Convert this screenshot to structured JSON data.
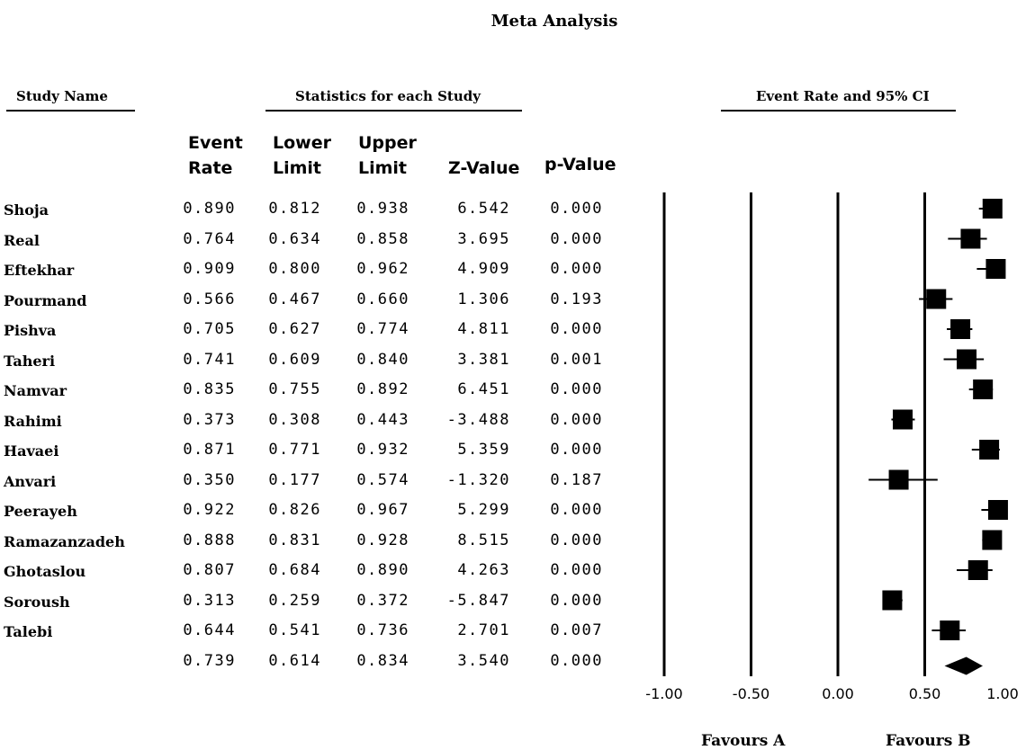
{
  "title": "Meta Analysis",
  "headers": {
    "study_name": "Study Name",
    "stats": "Statistics for each Study",
    "plot": "Event Rate and 95% CI"
  },
  "columns": {
    "event_rate": [
      "Event",
      "Rate"
    ],
    "lower_limit": [
      "Lower",
      "Limit"
    ],
    "upper_limit": [
      "Upper",
      "Limit"
    ],
    "z_value": "Z-Value",
    "p_value": "p-Value"
  },
  "rows": [
    {
      "study": "Shoja",
      "event_rate": "0.890",
      "lower": "0.812",
      "upper": "0.938",
      "z": "6.542",
      "p": "0.000"
    },
    {
      "study": "Real",
      "event_rate": "0.764",
      "lower": "0.634",
      "upper": "0.858",
      "z": "3.695",
      "p": "0.000"
    },
    {
      "study": "Eftekhar",
      "event_rate": "0.909",
      "lower": "0.800",
      "upper": "0.962",
      "z": "4.909",
      "p": "0.000"
    },
    {
      "study": "Pourmand",
      "event_rate": "0.566",
      "lower": "0.467",
      "upper": "0.660",
      "z": "1.306",
      "p": "0.193"
    },
    {
      "study": "Pishva",
      "event_rate": "0.705",
      "lower": "0.627",
      "upper": "0.774",
      "z": "4.811",
      "p": "0.000"
    },
    {
      "study": "Taheri",
      "event_rate": "0.741",
      "lower": "0.609",
      "upper": "0.840",
      "z": "3.381",
      "p": "0.001"
    },
    {
      "study": "Namvar",
      "event_rate": "0.835",
      "lower": "0.755",
      "upper": "0.892",
      "z": "6.451",
      "p": "0.000"
    },
    {
      "study": "Rahimi",
      "event_rate": "0.373",
      "lower": "0.308",
      "upper": "0.443",
      "z": "-3.488",
      "p": "0.000"
    },
    {
      "study": "Havaei",
      "event_rate": "0.871",
      "lower": "0.771",
      "upper": "0.932",
      "z": "5.359",
      "p": "0.000"
    },
    {
      "study": "Anvari",
      "event_rate": "0.350",
      "lower": "0.177",
      "upper": "0.574",
      "z": "-1.320",
      "p": "0.187"
    },
    {
      "study": "Peerayeh",
      "event_rate": "0.922",
      "lower": "0.826",
      "upper": "0.967",
      "z": "5.299",
      "p": "0.000"
    },
    {
      "study": "Ramazanzadeh",
      "event_rate": "0.888",
      "lower": "0.831",
      "upper": "0.928",
      "z": "8.515",
      "p": "0.000"
    },
    {
      "study": "Ghotaslou",
      "event_rate": "0.807",
      "lower": "0.684",
      "upper": "0.890",
      "z": "4.263",
      "p": "0.000"
    },
    {
      "study": "Soroush",
      "event_rate": "0.313",
      "lower": "0.259",
      "upper": "0.372",
      "z": "-5.847",
      "p": "0.000"
    },
    {
      "study": "Talebi",
      "event_rate": "0.644",
      "lower": "0.541",
      "upper": "0.736",
      "z": "2.701",
      "p": "0.007"
    },
    {
      "study": "",
      "event_rate": "0.739",
      "lower": "0.614",
      "upper": "0.834",
      "z": "3.540",
      "p": "0.000"
    }
  ],
  "favours": {
    "a": "Favours A",
    "b": "Favours B"
  },
  "chart_data": {
    "type": "forest",
    "title": "Meta Analysis",
    "xlim": [
      -1.0,
      1.0
    ],
    "x_ticks": [
      "-1.00",
      "-0.50",
      "0.00",
      "0.50",
      "1.00"
    ],
    "x_tick_values": [
      -1.0,
      -0.5,
      0.0,
      0.5,
      1.0
    ],
    "studies": [
      "Shoja",
      "Real",
      "Eftekhar",
      "Pourmand",
      "Pishva",
      "Taheri",
      "Namvar",
      "Rahimi",
      "Havaei",
      "Anvari",
      "Peerayeh",
      "Ramazanzadeh",
      "Ghotaslou",
      "Soroush",
      "Talebi"
    ],
    "event_rate": [
      0.89,
      0.764,
      0.909,
      0.566,
      0.705,
      0.741,
      0.835,
      0.373,
      0.871,
      0.35,
      0.922,
      0.888,
      0.807,
      0.313,
      0.644
    ],
    "lower_limit": [
      0.812,
      0.634,
      0.8,
      0.467,
      0.627,
      0.609,
      0.755,
      0.308,
      0.771,
      0.177,
      0.826,
      0.831,
      0.684,
      0.259,
      0.541
    ],
    "upper_limit": [
      0.938,
      0.858,
      0.962,
      0.66,
      0.774,
      0.84,
      0.892,
      0.443,
      0.932,
      0.574,
      0.967,
      0.928,
      0.89,
      0.372,
      0.736
    ],
    "summary": {
      "event_rate": 0.739,
      "lower_limit": 0.614,
      "upper_limit": 0.834
    },
    "grid": false
  }
}
